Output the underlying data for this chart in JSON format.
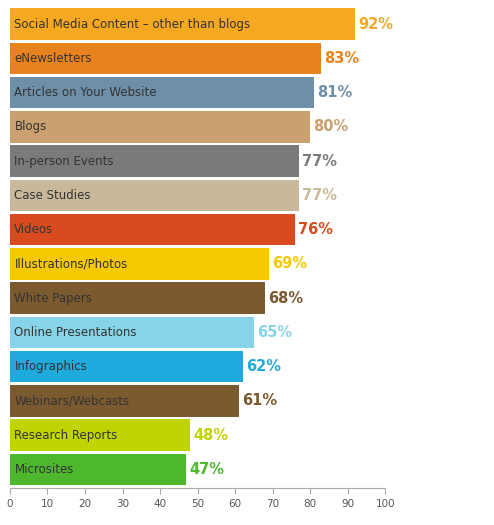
{
  "categories": [
    "Microsites",
    "Research Reports",
    "Webinars/Webcasts",
    "Infographics",
    "Online Presentations",
    "White Papers",
    "Illustrations/Photos",
    "Videos",
    "Case Studies",
    "In-person Events",
    "Blogs",
    "Articles on Your Website",
    "eNewsletters",
    "Social Media Content – other than blogs"
  ],
  "values": [
    47,
    48,
    61,
    62,
    65,
    68,
    69,
    76,
    77,
    77,
    80,
    81,
    83,
    92
  ],
  "bar_colors": [
    "#4db82e",
    "#bfd400",
    "#7b5a30",
    "#1eaadc",
    "#87d4e8",
    "#7b5a30",
    "#f5c800",
    "#d94a1e",
    "#c9b99a",
    "#7a7a7a",
    "#c9a06e",
    "#6e8fa8",
    "#e8821e",
    "#f5a820"
  ],
  "pct_colors": [
    "#4db82e",
    "#bfd400",
    "#7b5a30",
    "#1eaadc",
    "#87d4e8",
    "#7b5a30",
    "#f5c800",
    "#d94a1e",
    "#c9b99a",
    "#7a7a7a",
    "#c9a06e",
    "#6e8fa8",
    "#e8821e",
    "#f5a820"
  ],
  "label_text_color": "#333333",
  "xlim": [
    0,
    100
  ],
  "xticks": [
    0,
    10,
    20,
    30,
    40,
    50,
    60,
    70,
    80,
    90,
    100
  ],
  "background_color": "#ffffff",
  "bar_height": 0.92,
  "font_size_label": 8.5,
  "font_size_pct": 10.5
}
